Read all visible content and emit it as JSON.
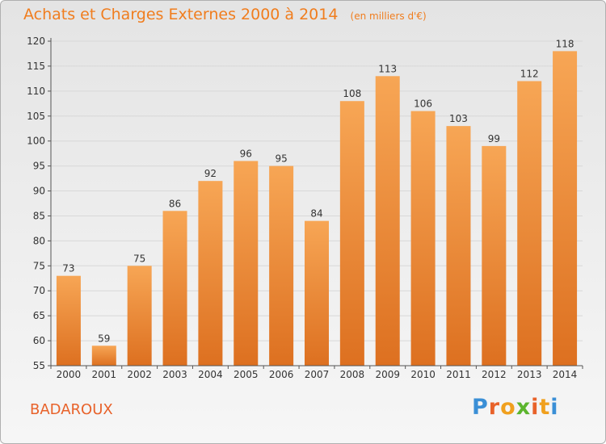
{
  "header": {
    "title": "Achats et Charges Externes 2000 à 2014",
    "subtitle": "(en milliers d'€)"
  },
  "footer": {
    "commune": "BADAROUX",
    "brand": "Proxiti",
    "brand_colors": [
      "#3a8fd6",
      "#e8622a",
      "#f0a01e",
      "#5cb52e",
      "#e8622a",
      "#f0a01e",
      "#3a8fd6"
    ]
  },
  "colors": {
    "bar_top": "#f7a655",
    "bar_bottom": "#dd7020",
    "grid": "#d8d8d8",
    "axis": "#555555",
    "title": "#f07d1e"
  },
  "chart_data": {
    "type": "bar",
    "categories": [
      "2000",
      "2001",
      "2002",
      "2003",
      "2004",
      "2005",
      "2006",
      "2007",
      "2008",
      "2009",
      "2010",
      "2011",
      "2012",
      "2013",
      "2014"
    ],
    "values": [
      73,
      59,
      75,
      86,
      92,
      96,
      95,
      84,
      108,
      113,
      106,
      103,
      99,
      112,
      118
    ],
    "ylim": [
      55,
      120
    ],
    "yticks": [
      55,
      60,
      65,
      70,
      75,
      80,
      85,
      90,
      95,
      100,
      105,
      110,
      115,
      120
    ],
    "grid": true,
    "data_labels": true
  }
}
